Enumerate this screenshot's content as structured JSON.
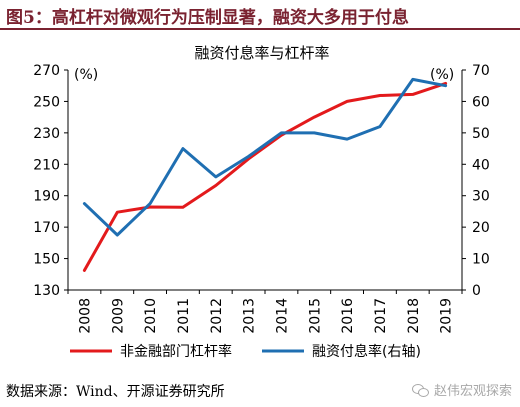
{
  "figure_title": "图5：高杠杆对微观行为压制显著，融资大多用于付息",
  "source": "数据来源：Wind、开源证券研究所",
  "watermark": "赵伟宏观探索",
  "chart_data": {
    "type": "line",
    "title": "融资付息率与杠杆率",
    "x": [
      "2008",
      "2009",
      "2010",
      "2011",
      "2012",
      "2013",
      "2014",
      "2015",
      "2016",
      "2017",
      "2018",
      "2019"
    ],
    "y_left": {
      "ticks": [
        130,
        150,
        170,
        190,
        210,
        230,
        250,
        270
      ],
      "range": [
        130,
        270
      ],
      "unit": "(%)"
    },
    "y_right": {
      "ticks": [
        0,
        10,
        20,
        30,
        40,
        50,
        60,
        70
      ],
      "range": [
        0,
        70
      ],
      "unit": "(%)"
    },
    "series": [
      {
        "name": "非金融部门杠杆率",
        "axis": "left",
        "color": "#e31a1c",
        "values": [
          142.5,
          179.5,
          182.8,
          182.6,
          196.5,
          213.5,
          228.5,
          240.0,
          250.0,
          253.8,
          254.5,
          261.5
        ]
      },
      {
        "name": "融资付息率(右轴)",
        "axis": "right",
        "color": "#1f6fb2",
        "values": [
          27.5,
          17.5,
          27.5,
          45.0,
          36.0,
          42.5,
          50.0,
          50.0,
          48.0,
          52.0,
          67.0,
          65.0
        ]
      }
    ],
    "legend_position": "bottom",
    "grid": false
  }
}
